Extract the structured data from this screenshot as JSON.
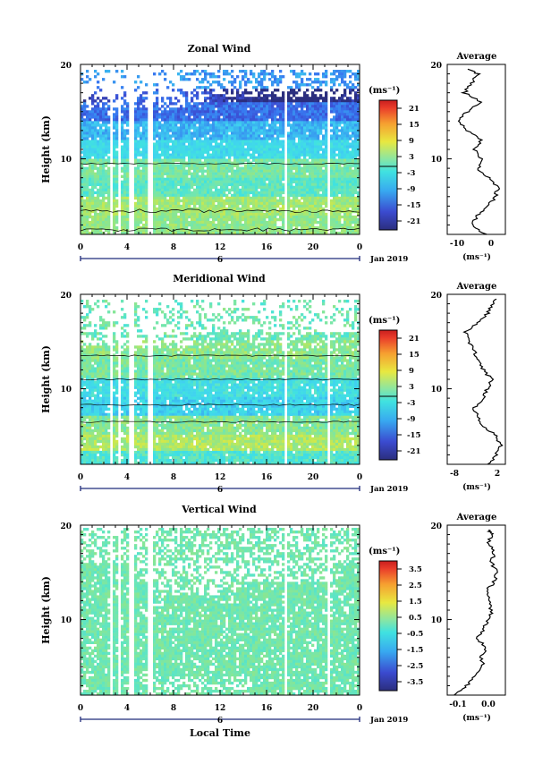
{
  "panels": [
    {
      "title": "Zonal Wind",
      "ylabel": "Height (km)",
      "y_ticks": [
        "20",
        "10"
      ],
      "x_ticks": [
        "0",
        "4",
        "8",
        "12",
        "16",
        "20",
        "0"
      ],
      "date_tick": "6",
      "date_label": "Jan 2019",
      "unit": "(ms⁻¹)",
      "cb_ticks": [
        "21",
        "15",
        "9",
        "3",
        "-3",
        "-9",
        "-15",
        "-21"
      ],
      "avg_title": "Average",
      "avg_y_ticks": [
        "20",
        "10"
      ],
      "avg_x_ticks": [
        "-10",
        "0"
      ],
      "avg_unit": "(ms⁻¹)"
    },
    {
      "title": "Meridional Wind",
      "ylabel": "Height (km)",
      "y_ticks": [
        "20",
        "10"
      ],
      "x_ticks": [
        "0",
        "4",
        "8",
        "12",
        "16",
        "20",
        "0"
      ],
      "date_tick": "6",
      "date_label": "Jan 2019",
      "unit": "(ms⁻¹)",
      "cb_ticks": [
        "21",
        "15",
        "9",
        "3",
        "-3",
        "-9",
        "-15",
        "-21"
      ],
      "avg_title": "Average",
      "avg_y_ticks": [
        "20",
        "10"
      ],
      "avg_x_ticks": [
        "-8",
        "2"
      ],
      "avg_unit": "(ms⁻¹)"
    },
    {
      "title": "Vertical Wind",
      "ylabel": "Height (km)",
      "y_ticks": [
        "20",
        "10"
      ],
      "x_ticks": [
        "0",
        "4",
        "8",
        "12",
        "16",
        "20",
        "0"
      ],
      "date_tick": "6",
      "date_label": "Jan 2019",
      "unit": "(ms⁻¹)",
      "cb_ticks": [
        "3.5",
        "2.5",
        "1.5",
        "0.5",
        "-0.5",
        "-1.5",
        "-2.5",
        "-3.5"
      ],
      "avg_title": "Average",
      "avg_y_ticks": [
        "20",
        "10"
      ],
      "avg_x_ticks": [
        "-0.1",
        "0.0"
      ],
      "avg_unit": "(ms⁻¹)"
    }
  ],
  "xlabel": "Local Time",
  "chart_data": [
    {
      "type": "heatmap",
      "title": "Zonal Wind",
      "xlabel": "",
      "ylabel": "Height (km)",
      "xlim": [
        0,
        24
      ],
      "ylim": [
        2,
        20
      ],
      "colorbar": {
        "label": "(ms⁻¹)",
        "range": [
          -24,
          24
        ],
        "ticks": [
          -21,
          -15,
          -9,
          -3,
          3,
          9,
          15,
          21
        ]
      },
      "profile": [
        [
          2,
          -2
        ],
        [
          3,
          -6
        ],
        [
          4,
          -4
        ],
        [
          5,
          -1
        ],
        [
          6,
          1
        ],
        [
          7,
          2
        ],
        [
          8,
          -1
        ],
        [
          9,
          -4
        ],
        [
          10,
          -3
        ],
        [
          11,
          -5
        ],
        [
          12,
          -3
        ],
        [
          13,
          -7
        ],
        [
          14,
          -10
        ],
        [
          15,
          -7
        ],
        [
          16,
          -3
        ],
        [
          17,
          -8
        ],
        [
          18,
          -6
        ],
        [
          19,
          -4
        ],
        [
          19.5,
          -7
        ]
      ]
    },
    {
      "type": "heatmap",
      "title": "Meridional Wind",
      "xlabel": "",
      "ylabel": "Height (km)",
      "xlim": [
        0,
        24
      ],
      "ylim": [
        2,
        20
      ],
      "colorbar": {
        "label": "(ms⁻¹)",
        "range": [
          -24,
          24
        ],
        "ticks": [
          -21,
          -15,
          -9,
          -3,
          3,
          9,
          15,
          21
        ]
      },
      "profile": [
        [
          2,
          -1
        ],
        [
          3,
          1
        ],
        [
          4,
          2
        ],
        [
          5,
          1
        ],
        [
          6,
          -2
        ],
        [
          7,
          -3
        ],
        [
          8,
          -4
        ],
        [
          9,
          -2
        ],
        [
          10,
          -1
        ],
        [
          11,
          0
        ],
        [
          12,
          -2
        ],
        [
          13,
          -3
        ],
        [
          14,
          -4
        ],
        [
          15,
          -5
        ],
        [
          16,
          -6
        ],
        [
          17,
          -3
        ],
        [
          18,
          -1
        ],
        [
          19,
          0
        ],
        [
          19.5,
          1
        ]
      ]
    },
    {
      "type": "heatmap",
      "title": "Vertical Wind",
      "xlabel": "Local Time",
      "ylabel": "Height (km)",
      "xlim": [
        0,
        24
      ],
      "ylim": [
        2,
        20
      ],
      "colorbar": {
        "label": "(ms⁻¹)",
        "range": [
          -4,
          4
        ],
        "ticks": [
          -3.5,
          -2.5,
          -1.5,
          -0.5,
          0.5,
          1.5,
          2.5,
          3.5
        ]
      },
      "profile": [
        [
          2,
          -0.12
        ],
        [
          3,
          -0.08
        ],
        [
          4,
          -0.05
        ],
        [
          5,
          -0.02
        ],
        [
          6,
          -0.03
        ],
        [
          7,
          -0.01
        ],
        [
          8,
          -0.04
        ],
        [
          9,
          -0.02
        ],
        [
          10,
          0.0
        ],
        [
          11,
          0.01
        ],
        [
          12,
          0.0
        ],
        [
          13,
          -0.01
        ],
        [
          14,
          0.02
        ],
        [
          15,
          0.03
        ],
        [
          16,
          0.01
        ],
        [
          17,
          0.02
        ],
        [
          18,
          0.0
        ],
        [
          19,
          0.01
        ],
        [
          19.5,
          0.0
        ]
      ]
    }
  ]
}
